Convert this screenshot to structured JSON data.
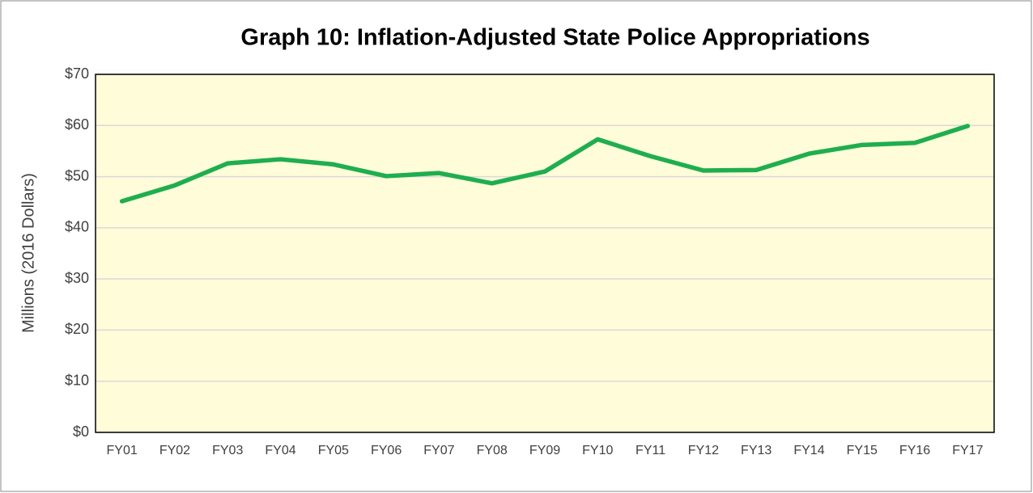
{
  "chart_data": {
    "type": "line",
    "title": "Graph 10: Inflation-Adjusted State Police Appropriations",
    "y_label": "Millions (2016 Dollars)",
    "categories": [
      "FY01",
      "FY02",
      "FY03",
      "FY04",
      "FY05",
      "FY06",
      "FY07",
      "FY08",
      "FY09",
      "FY10",
      "FY11",
      "FY12",
      "FY13",
      "FY14",
      "FY15",
      "FY16",
      "FY17"
    ],
    "series": [
      {
        "name": "State Police Appropriations",
        "color": "#1fae4f",
        "values": [
          45.2,
          48.3,
          52.6,
          53.4,
          52.4,
          50.1,
          50.7,
          48.7,
          51.0,
          57.3,
          54.0,
          51.2,
          51.3,
          54.5,
          56.2,
          56.6,
          59.9
        ]
      }
    ],
    "ylim": [
      0,
      70
    ],
    "yticks": [
      {
        "value": 0,
        "label": "$0"
      },
      {
        "value": 10,
        "label": "$10"
      },
      {
        "value": 20,
        "label": "$20"
      },
      {
        "value": 30,
        "label": "$30"
      },
      {
        "value": 40,
        "label": "$40"
      },
      {
        "value": 50,
        "label": "$50"
      },
      {
        "value": 60,
        "label": "$60"
      },
      {
        "value": 70,
        "label": "$70"
      }
    ],
    "grid": true,
    "plot_background": "#fffcd9"
  }
}
